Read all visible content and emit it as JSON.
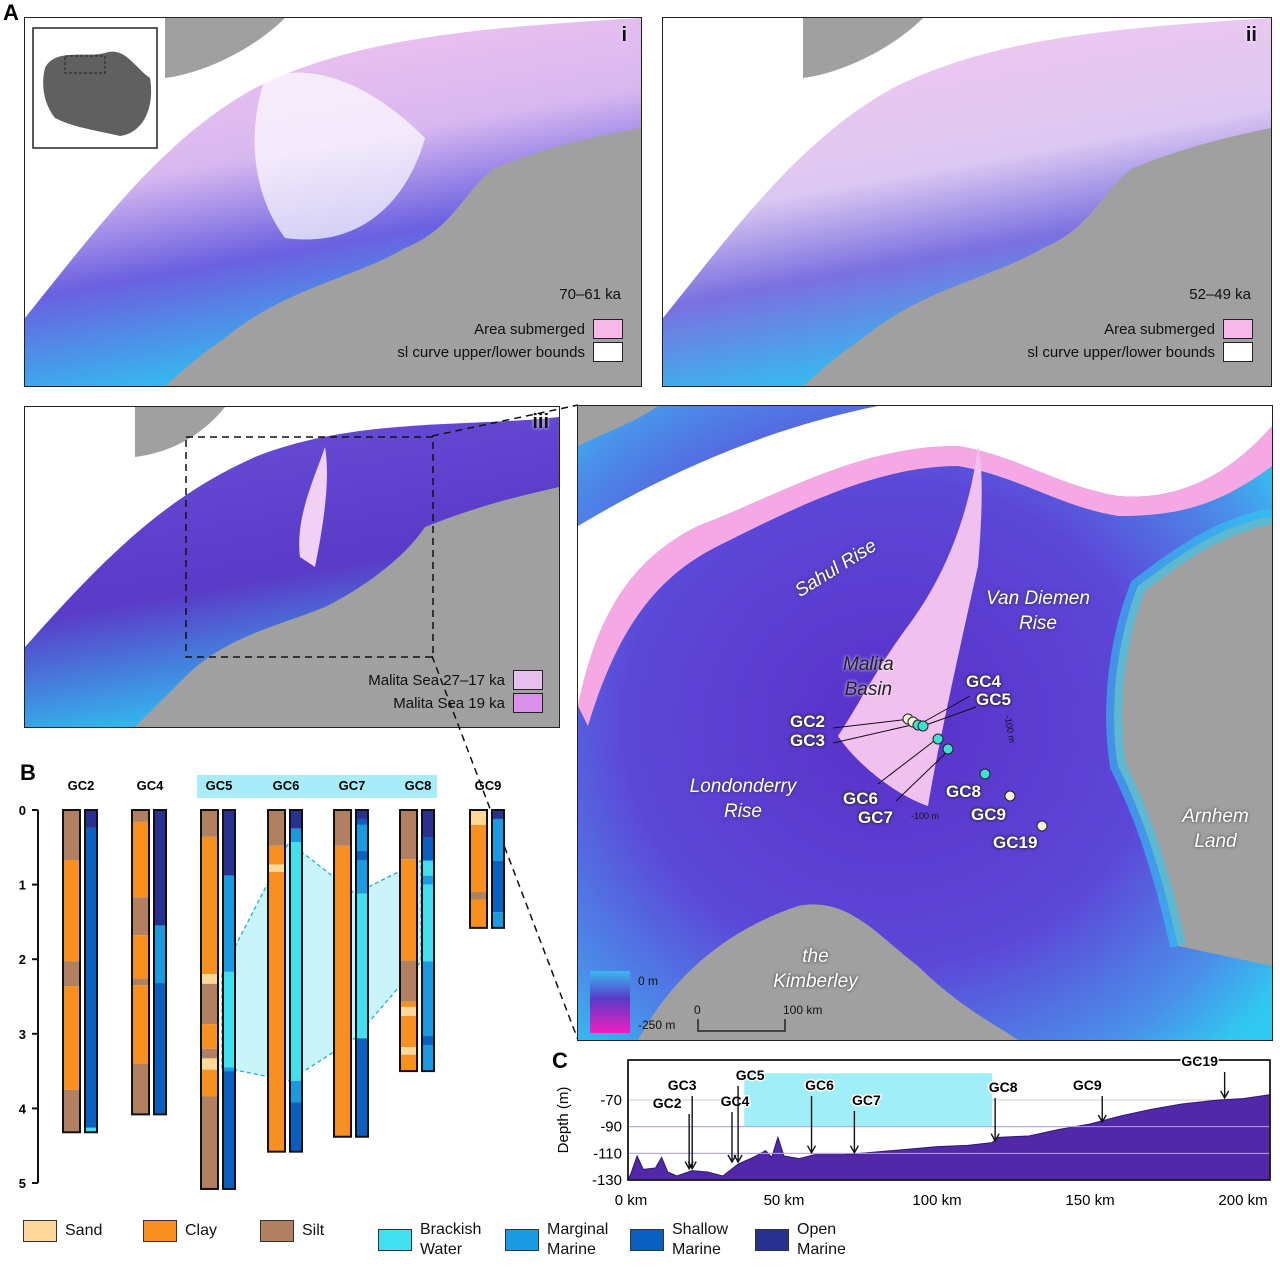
{
  "panel_letters": {
    "a": "A",
    "b": "B",
    "c": "C"
  },
  "panel_i": {
    "label": "i",
    "age": "70–61 ka",
    "legend": [
      {
        "label": "Area submerged",
        "color": "#f6b8e8"
      },
      {
        "label": "sl curve upper/lower bounds",
        "color": "#ffffff"
      }
    ]
  },
  "panel_ii": {
    "label": "ii",
    "age": "52–49 ka",
    "legend": [
      {
        "label": "Area submerged",
        "color": "#f6b8e8"
      },
      {
        "label": "sl curve upper/lower bounds",
        "color": "#ffffff"
      }
    ]
  },
  "panel_iii": {
    "label": "iii",
    "legend": [
      {
        "label": "Malita Sea 27–17 ka",
        "color": "#e8c0f0"
      },
      {
        "label": "Malita Sea 19 ka",
        "color": "#d890e8"
      }
    ]
  },
  "detail_map": {
    "regions": {
      "sahul_rise": "Sahul Rise",
      "van_diemen_1": "Van Diemen",
      "van_diemen_2": "Rise",
      "malita_1": "Malita",
      "malita_2": "Basin",
      "londonderry_1": "Londonderry",
      "londonderry_2": "Rise",
      "arnhem_1": "Arnhem",
      "arnhem_2": "Land",
      "kimberley_1": "the",
      "kimberley_2": "Kimberley"
    },
    "cores": [
      "GC2",
      "GC3",
      "GC4",
      "GC5",
      "GC6",
      "GC7",
      "GC8",
      "GC9",
      "GC19"
    ],
    "contour_labels": [
      "-100 m",
      "-100 m"
    ],
    "depth_scale": {
      "top": "0 m",
      "bottom": "-250 m",
      "colors": [
        "#3ab8f0",
        "#5a3ac8",
        "#f020c0"
      ]
    },
    "distance_scale": {
      "start": "0",
      "end": "100 km"
    }
  },
  "colors": {
    "land": "#a0a0a0",
    "sand": "#fcd89a",
    "clay": "#f7901e",
    "silt": "#b08060",
    "brackish": "#40e0f0",
    "marginal": "#1a9ae0",
    "shallow": "#0a60c0",
    "open": "#283090",
    "correlation": "#c8f4fa"
  },
  "core_logs": {
    "depth_ticks": [
      "0",
      "1",
      "2",
      "3",
      "4",
      "5"
    ],
    "group_label_cores": [
      "GC5",
      "GC6",
      "GC7",
      "GC8"
    ],
    "cores": [
      {
        "name": "GC2",
        "lith": [
          [
            "silt",
            0,
            0.67
          ],
          [
            "clay",
            0.67,
            2.03
          ],
          [
            "silt",
            2.03,
            2.36
          ],
          [
            "clay",
            2.36,
            3.75
          ],
          [
            "silt",
            3.75,
            4.32
          ]
        ],
        "env": [
          [
            "open",
            0,
            0.24
          ],
          [
            "shallow",
            0.24,
            4.26
          ],
          [
            "brackish",
            4.26,
            4.32
          ]
        ]
      },
      {
        "name": "GC4",
        "lith": [
          [
            "silt",
            0,
            0.16
          ],
          [
            "clay",
            0.16,
            1.17
          ],
          [
            "silt",
            1.17,
            1.68
          ],
          [
            "clay",
            1.68,
            2.26
          ],
          [
            "silt",
            2.26,
            2.35
          ],
          [
            "clay",
            2.35,
            3.4
          ],
          [
            "silt",
            3.4,
            4.08
          ]
        ],
        "env": [
          [
            "open",
            0,
            1.55
          ],
          [
            "marginal",
            1.55,
            2.32
          ],
          [
            "shallow",
            2.32,
            4.08
          ]
        ]
      },
      {
        "name": "GC5",
        "lith": [
          [
            "silt",
            0,
            0.36
          ],
          [
            "clay",
            0.36,
            2.2
          ],
          [
            "sand",
            2.2,
            2.33
          ],
          [
            "silt",
            2.33,
            2.87
          ],
          [
            "clay",
            2.87,
            3.2
          ],
          [
            "silt",
            3.2,
            3.33
          ],
          [
            "sand",
            3.33,
            3.48
          ],
          [
            "clay",
            3.48,
            3.84
          ],
          [
            "silt",
            3.84,
            5.08
          ]
        ],
        "env": [
          [
            "open",
            0,
            0.88
          ],
          [
            "marginal",
            0.88,
            2.17
          ],
          [
            "brackish",
            2.17,
            3.45
          ],
          [
            "marginal",
            3.45,
            3.5
          ],
          [
            "shallow",
            3.5,
            5.08
          ]
        ]
      },
      {
        "name": "GC6",
        "lith": [
          [
            "silt",
            0,
            0.48
          ],
          [
            "clay",
            0.48,
            0.73
          ],
          [
            "sand",
            0.73,
            0.83
          ],
          [
            "clay",
            0.83,
            4.58
          ]
        ],
        "env": [
          [
            "open",
            0,
            0.25
          ],
          [
            "marginal",
            0.25,
            0.43
          ],
          [
            "brackish",
            0.43,
            3.63
          ],
          [
            "marginal",
            3.63,
            3.92
          ],
          [
            "shallow",
            3.92,
            4.58
          ]
        ]
      },
      {
        "name": "GC7",
        "lith": [
          [
            "silt",
            0,
            0.48
          ],
          [
            "clay",
            0.48,
            4.38
          ]
        ],
        "env": [
          [
            "open",
            0,
            0.12
          ],
          [
            "shallow",
            0.12,
            0.2
          ],
          [
            "marginal",
            0.2,
            0.55
          ],
          [
            "shallow",
            0.55,
            0.67
          ],
          [
            "marginal",
            0.67,
            1.12
          ],
          [
            "brackish",
            1.12,
            3.06
          ],
          [
            "shallow",
            3.06,
            4.38
          ]
        ]
      },
      {
        "name": "GC8",
        "lith": [
          [
            "silt",
            0,
            0.66
          ],
          [
            "clay",
            0.66,
            2.02
          ],
          [
            "silt",
            2.02,
            2.57
          ],
          [
            "clay",
            2.57,
            2.64
          ],
          [
            "sand",
            2.64,
            2.76
          ],
          [
            "clay",
            2.76,
            3.18
          ],
          [
            "sand",
            3.18,
            3.28
          ],
          [
            "clay",
            3.28,
            3.5
          ]
        ],
        "env": [
          [
            "open",
            0,
            0.37
          ],
          [
            "shallow",
            0.37,
            0.68
          ],
          [
            "brackish",
            0.68,
            0.88
          ],
          [
            "marginal",
            0.88,
            1.0
          ],
          [
            "brackish",
            1.0,
            2.03
          ],
          [
            "marginal",
            2.03,
            3.03
          ],
          [
            "shallow",
            3.03,
            3.15
          ],
          [
            "marginal",
            3.15,
            3.5
          ]
        ]
      },
      {
        "name": "GC9",
        "lith": [
          [
            "sand",
            0,
            0.2
          ],
          [
            "clay",
            0.2,
            1.1
          ],
          [
            "silt",
            1.1,
            1.2
          ],
          [
            "clay",
            1.2,
            1.58
          ]
        ],
        "env": [
          [
            "open",
            0,
            0.12
          ],
          [
            "marginal",
            0.12,
            0.68
          ],
          [
            "shallow",
            0.68,
            1.37
          ],
          [
            "marginal",
            1.37,
            1.58
          ]
        ]
      }
    ],
    "brackish_correlation": {
      "GC5": [
        2.17,
        3.45
      ],
      "GC6": [
        0.43,
        3.63
      ],
      "GC7": [
        1.12,
        3.06
      ],
      "GC8": [
        0.68,
        2.03
      ]
    }
  },
  "chart_data": {
    "type": "area",
    "ylabel": "Depth (m)",
    "x_ticks": [
      "0 km",
      "50 km",
      "100 km",
      "150 km",
      "200 km"
    ],
    "y_ticks": [
      "-70",
      "-90",
      "-110",
      "-130"
    ],
    "xlim": [
      0,
      210
    ],
    "ylim": [
      -130,
      -40
    ],
    "profile": [
      [
        0,
        -125
      ],
      [
        2,
        -112
      ],
      [
        4,
        -122
      ],
      [
        8,
        -121
      ],
      [
        10,
        -113
      ],
      [
        12,
        -124
      ],
      [
        15,
        -127
      ],
      [
        20,
        -123
      ],
      [
        25,
        -124
      ],
      [
        30,
        -127
      ],
      [
        35,
        -118
      ],
      [
        40,
        -113
      ],
      [
        44,
        -108
      ],
      [
        46,
        -113
      ],
      [
        48,
        -98
      ],
      [
        50,
        -112
      ],
      [
        55,
        -114
      ],
      [
        60,
        -111
      ],
      [
        70,
        -111
      ],
      [
        80,
        -109
      ],
      [
        90,
        -107
      ],
      [
        100,
        -105
      ],
      [
        110,
        -104
      ],
      [
        118,
        -102
      ],
      [
        120,
        -98
      ],
      [
        130,
        -97
      ],
      [
        140,
        -92
      ],
      [
        150,
        -88
      ],
      [
        160,
        -82
      ],
      [
        170,
        -77
      ],
      [
        180,
        -73
      ],
      [
        192,
        -70
      ],
      [
        200,
        -69
      ],
      [
        210,
        -66
      ]
    ],
    "brackish_band": {
      "x": [
        37,
        118
      ],
      "depth": [
        -50,
        -90
      ]
    },
    "markers": [
      {
        "name": "GC2",
        "x": 19
      },
      {
        "name": "GC3",
        "x": 20
      },
      {
        "name": "GC4",
        "x": 33
      },
      {
        "name": "GC5",
        "x": 35
      },
      {
        "name": "GC6",
        "x": 59
      },
      {
        "name": "GC7",
        "x": 73
      },
      {
        "name": "GC8",
        "x": 119
      },
      {
        "name": "GC9",
        "x": 154
      },
      {
        "name": "GC19",
        "x": 194
      }
    ]
  },
  "legend": [
    {
      "label": "Sand",
      "key": "sand"
    },
    {
      "label": "Clay",
      "key": "clay"
    },
    {
      "label": "Silt",
      "key": "silt"
    },
    {
      "label": "Brackish Water",
      "key": "brackish"
    },
    {
      "label": "Marginal Marine",
      "key": "marginal"
    },
    {
      "label": "Shallow Marine",
      "key": "shallow"
    },
    {
      "label": "Open Marine",
      "key": "open"
    }
  ]
}
